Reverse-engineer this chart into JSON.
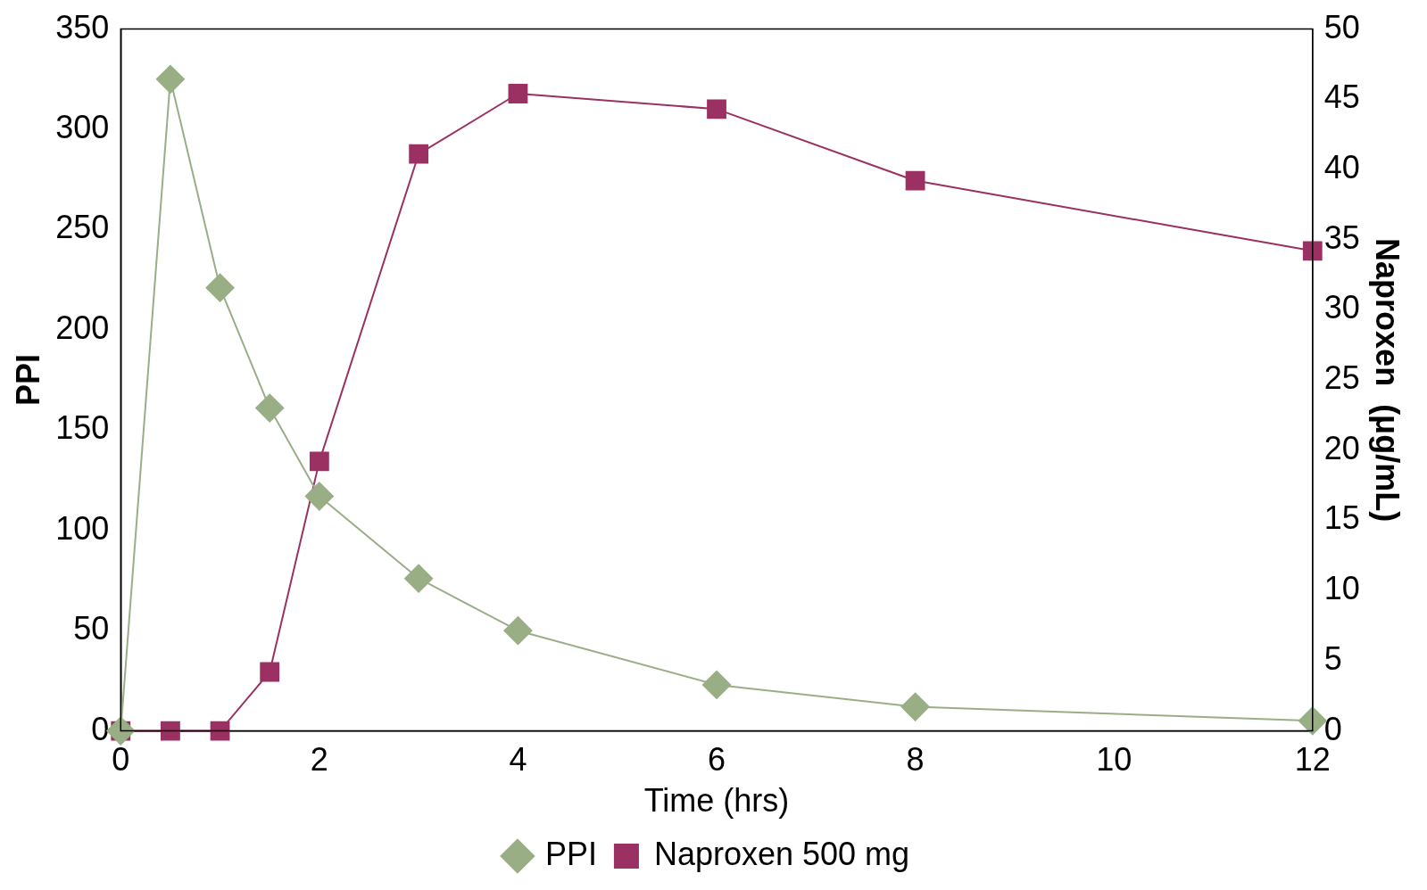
{
  "chart_data": {
    "type": "line",
    "xlabel": "Time (hrs)",
    "ylabel": "PPI",
    "y2label": "Naproxen  (μg/mL)",
    "xlim": [
      0,
      12
    ],
    "xticks": [
      0,
      2,
      4,
      6,
      8,
      10,
      12
    ],
    "ylim": [
      0,
      350
    ],
    "yticks": [
      0,
      50,
      100,
      150,
      200,
      250,
      300,
      350
    ],
    "y2lim": [
      0,
      50
    ],
    "y2ticks": [
      0,
      5,
      10,
      15,
      20,
      25,
      30,
      35,
      40,
      45,
      50
    ],
    "grid": false,
    "legend": "bottom",
    "line_style": "solid",
    "series": [
      {
        "name": "PPI",
        "color": "#9aae86",
        "marker": "diamond",
        "x": [
          0,
          0.5,
          1,
          1.5,
          2,
          3,
          4,
          6,
          8,
          12
        ],
        "values": [
          0,
          325,
          221,
          161,
          117,
          76,
          50,
          23,
          12,
          5
        ]
      },
      {
        "name": "Naproxen 500 mg",
        "color": "#9b3063",
        "marker": "square",
        "axis": "y2",
        "x": [
          0,
          0.5,
          1,
          1.5,
          2,
          3,
          4,
          6,
          8,
          12
        ],
        "values": [
          0,
          0,
          0,
          4.2,
          19.2,
          41.1,
          45.4,
          44.3,
          39.2,
          34.2
        ]
      }
    ]
  }
}
